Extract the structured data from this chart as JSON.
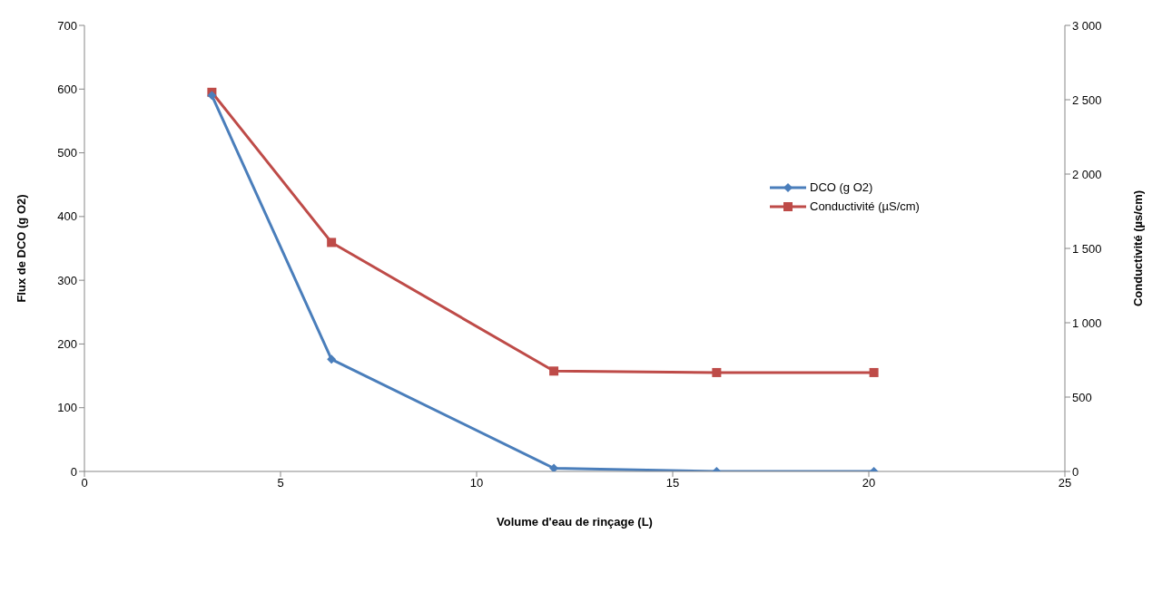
{
  "chart_data": {
    "type": "line",
    "xlabel": "Volume d'eau de rinçage (L)",
    "ylabel": "Flux de DCO (g O2)",
    "y2label": "Conductivité (µs/cm)",
    "x": [
      3.25,
      6.3,
      11.97,
      16.12,
      20.13
    ],
    "series": [
      {
        "name": "DCO (g O2)",
        "color": "#4a7ebb",
        "marker": "diamond",
        "values": [
          590,
          176,
          5,
          0,
          0
        ]
      },
      {
        "name": "Conductivité (µS/cm)",
        "color": "#be4b48",
        "marker": "square",
        "axis": "y2",
        "values": [
          2550,
          1540,
          675,
          665,
          665
        ]
      }
    ],
    "xlim": [
      0,
      25
    ],
    "xticks": [
      0,
      5,
      10,
      15,
      20,
      25
    ],
    "ylim": [
      0,
      700
    ],
    "yticks": [
      0,
      100,
      200,
      300,
      400,
      500,
      600,
      700
    ],
    "y2lim": [
      0,
      3000
    ],
    "y2ticks": [
      0,
      {
        "value": 500,
        "label": "500"
      },
      {
        "value": 1000,
        "label": "1 000"
      },
      {
        "value": 1500,
        "label": "1 500"
      },
      {
        "value": 2000,
        "label": "2 000"
      },
      {
        "value": 2500,
        "label": "2 500"
      },
      {
        "value": 3000,
        "label": "3 000"
      }
    ],
    "grid": false,
    "legend": "right",
    "line_style": "solid"
  }
}
